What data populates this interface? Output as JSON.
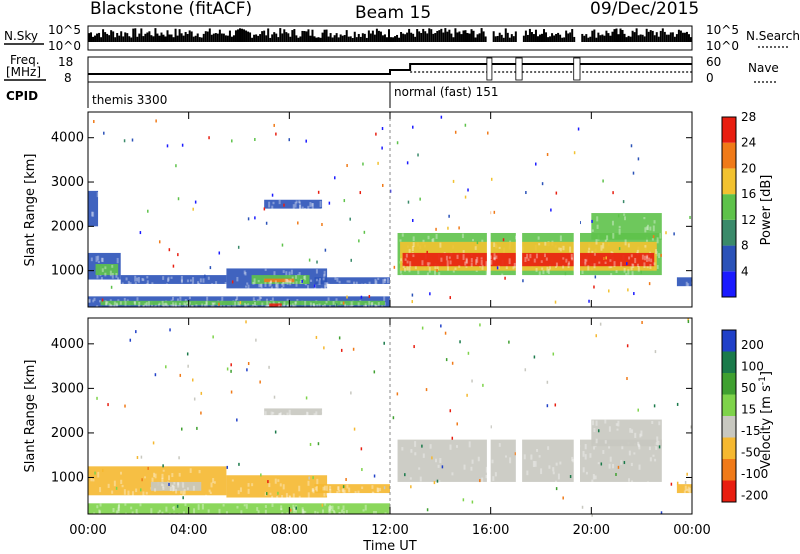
{
  "header": {
    "radar": "Blackstone (fitACF)",
    "beam": "Beam 15",
    "date": "09/Dec/2015"
  },
  "top_panels": {
    "nsky_label": "N.Sky",
    "nsky_ticks": [
      "10^5",
      "10^0"
    ],
    "nsearch_label": "N.Search",
    "nsearch_ticks": [
      "10^5",
      "10^0"
    ],
    "freq_label_1": "Freq.",
    "freq_label_2": "[MHz]",
    "freq_ticks": [
      "18",
      "8"
    ],
    "nave_label": "Nave",
    "nave_ticks": [
      "60",
      "0"
    ],
    "cpid_label": "CPID",
    "cpid_segments": [
      {
        "name": "themis 3300",
        "start_h": 0,
        "end_h": 12
      },
      {
        "name": "normal (fast) 151",
        "start_h": 12,
        "end_h": 24
      }
    ]
  },
  "chart_data": [
    {
      "type": "heatmap",
      "panel": "power",
      "ylabel": "Slant Range [km]",
      "ylim": [
        180,
        4580
      ],
      "xlim": [
        0,
        24
      ],
      "yticks": [
        "1000",
        "2000",
        "3000",
        "4000"
      ],
      "colorbar": {
        "label": "Power [dB]",
        "ticks": [
          "4",
          "8",
          "12",
          "16",
          "20",
          "24",
          "28"
        ],
        "colors": [
          "#1a1aff",
          "#2b52b8",
          "#3a8a6a",
          "#5ec24a",
          "#f2c230",
          "#f07a18",
          "#e81e10"
        ]
      },
      "bands": [
        {
          "t0": 0.0,
          "t1": 1.3,
          "r0": 800,
          "r1": 1400,
          "color": "#2b52b8"
        },
        {
          "t0": 0.3,
          "t1": 1.2,
          "r0": 900,
          "r1": 1150,
          "color": "#5ec24a"
        },
        {
          "t0": 0.0,
          "t1": 12.0,
          "r0": 180,
          "r1": 420,
          "color": "#2b52b8"
        },
        {
          "t0": 0.5,
          "t1": 11.8,
          "r0": 220,
          "r1": 320,
          "color": "#5ec24a"
        },
        {
          "t0": 1.3,
          "t1": 5.5,
          "r0": 700,
          "r1": 900,
          "color": "#2b52b8"
        },
        {
          "t0": 5.5,
          "t1": 9.5,
          "r0": 600,
          "r1": 1050,
          "color": "#2b52b8"
        },
        {
          "t0": 6.5,
          "t1": 8.8,
          "r0": 700,
          "r1": 900,
          "color": "#5ec24a"
        },
        {
          "t0": 7.0,
          "t1": 8.2,
          "r0": 740,
          "r1": 820,
          "color": "#f07a18"
        },
        {
          "t0": 9.0,
          "t1": 12.0,
          "r0": 700,
          "r1": 850,
          "color": "#2b52b8"
        },
        {
          "t0": 7.2,
          "t1": 7.7,
          "r0": 180,
          "r1": 260,
          "color": "#e81e10"
        },
        {
          "t0": 0.0,
          "t1": 0.4,
          "r0": 2000,
          "r1": 2800,
          "color": "#2b52b8"
        },
        {
          "t0": 7.0,
          "t1": 9.3,
          "r0": 2400,
          "r1": 2600,
          "color": "#2b52b8"
        },
        {
          "t0": 12.3,
          "t1": 22.8,
          "r0": 900,
          "r1": 1850,
          "color": "#5ec24a"
        },
        {
          "t0": 12.4,
          "t1": 22.6,
          "r0": 1000,
          "r1": 1650,
          "color": "#f2c230"
        },
        {
          "t0": 12.5,
          "t1": 22.5,
          "r0": 1100,
          "r1": 1400,
          "color": "#e81e10"
        },
        {
          "t0": 20.0,
          "t1": 22.8,
          "r0": 1700,
          "r1": 2300,
          "color": "#5ec24a"
        },
        {
          "t0": 23.4,
          "t1": 24.0,
          "r0": 650,
          "r1": 850,
          "color": "#2b52b8"
        }
      ]
    },
    {
      "type": "heatmap",
      "panel": "velocity",
      "ylabel": "Slant Range [km]",
      "xlabel": "Time UT",
      "ylim": [
        180,
        4580
      ],
      "xlim": [
        0,
        24
      ],
      "yticks": [
        "1000",
        "2000",
        "3000",
        "4000"
      ],
      "xticks": [
        "00:00",
        "04:00",
        "08:00",
        "12:00",
        "16:00",
        "20:00",
        "00:00"
      ],
      "colorbar": {
        "label": "Velocity [m s",
        "label_sup": "-1",
        "label_end": "]",
        "ticks": [
          "200",
          "100",
          "50",
          "15",
          "-15",
          "-50",
          "-100",
          "-200"
        ],
        "colors": [
          "#2040c8",
          "#1a7a4a",
          "#3fa030",
          "#7ed34a",
          "#c8c8c0",
          "#f5b830",
          "#f07a18",
          "#e81e10"
        ]
      },
      "bands": [
        {
          "t0": 0.0,
          "t1": 5.5,
          "r0": 600,
          "r1": 1250,
          "color": "#f5b830"
        },
        {
          "t0": 5.5,
          "t1": 9.5,
          "r0": 550,
          "r1": 1050,
          "color": "#f5b830"
        },
        {
          "t0": 9.0,
          "t1": 12.0,
          "r0": 650,
          "r1": 850,
          "color": "#f5b830"
        },
        {
          "t0": 0.0,
          "t1": 12.0,
          "r0": 180,
          "r1": 420,
          "color": "#7ed34a"
        },
        {
          "t0": 2.5,
          "t1": 4.5,
          "r0": 700,
          "r1": 900,
          "color": "#c8c8c0"
        },
        {
          "t0": 7.0,
          "t1": 9.3,
          "r0": 2400,
          "r1": 2550,
          "color": "#c8c8c0"
        },
        {
          "t0": 12.3,
          "t1": 22.8,
          "r0": 900,
          "r1": 1850,
          "color": "#c8c8c0"
        },
        {
          "t0": 20.0,
          "t1": 22.8,
          "r0": 1700,
          "r1": 2300,
          "color": "#c8c8c0"
        },
        {
          "t0": 23.4,
          "t1": 24.0,
          "r0": 650,
          "r1": 850,
          "color": "#f5b830"
        }
      ]
    }
  ]
}
